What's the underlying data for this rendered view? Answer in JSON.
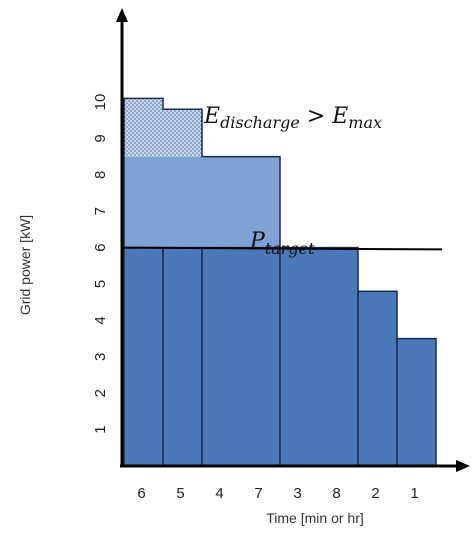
{
  "chart_data": {
    "type": "bar",
    "xlabel": "Time [min or hr]",
    "ylabel": "Grid power [kW]",
    "yticks": [
      1,
      2,
      3,
      4,
      5,
      6,
      7,
      8,
      9,
      10
    ],
    "ylim": [
      0,
      11
    ],
    "categories": [
      "6",
      "5",
      "4",
      "7",
      "3",
      "8",
      "2",
      "1"
    ],
    "bar_widths": [
      1,
      1,
      2,
      0,
      2,
      0,
      1,
      1
    ],
    "values": [
      10.1,
      9.8,
      8.5,
      8.5,
      6.0,
      6.0,
      4.8,
      3.5
    ],
    "p_target": 6.0,
    "p_target_end": 5.95,
    "labels": {
      "discharge_main": "E",
      "discharge_sub": "discharge",
      "relation": " > ",
      "max_main": "E",
      "max_sub": "max",
      "target_main": "P",
      "target_sub": "target"
    },
    "colors": {
      "bar_fill": "#4a78b8",
      "bar_border": "#1b2c4a",
      "mid_fill": "#7ea2d3",
      "dotted_fill": "#c8d6ea",
      "line": "#000000"
    }
  }
}
